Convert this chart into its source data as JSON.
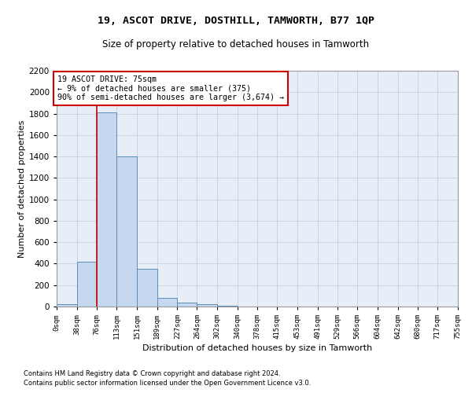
{
  "title": "19, ASCOT DRIVE, DOSTHILL, TAMWORTH, B77 1QP",
  "subtitle": "Size of property relative to detached houses in Tamworth",
  "xlabel": "Distribution of detached houses by size in Tamworth",
  "ylabel": "Number of detached properties",
  "bin_edges": [
    0,
    38,
    76,
    113,
    151,
    189,
    227,
    264,
    302,
    340,
    378,
    415,
    453,
    491,
    529,
    566,
    604,
    642,
    680,
    717,
    755
  ],
  "bin_labels": [
    "0sqm",
    "38sqm",
    "76sqm",
    "113sqm",
    "151sqm",
    "189sqm",
    "227sqm",
    "264sqm",
    "302sqm",
    "340sqm",
    "378sqm",
    "415sqm",
    "453sqm",
    "491sqm",
    "529sqm",
    "566sqm",
    "604sqm",
    "642sqm",
    "680sqm",
    "717sqm",
    "755sqm"
  ],
  "bar_heights": [
    20,
    420,
    1810,
    1400,
    350,
    80,
    35,
    25,
    5,
    2,
    1,
    0,
    0,
    0,
    0,
    0,
    0,
    0,
    0,
    0
  ],
  "bar_color": "#c5d8f0",
  "bar_edge_color": "#5b8db8",
  "grid_color": "#c8d0dc",
  "bg_color": "#e8eef8",
  "property_line_x": 75,
  "property_line_color": "#cc0000",
  "annotation_text": "19 ASCOT DRIVE: 75sqm\n← 9% of detached houses are smaller (375)\n90% of semi-detached houses are larger (3,674) →",
  "annotation_box_color": "#cc0000",
  "ylim": [
    0,
    2200
  ],
  "yticks": [
    0,
    200,
    400,
    600,
    800,
    1000,
    1200,
    1400,
    1600,
    1800,
    2000,
    2200
  ],
  "footer_line1": "Contains HM Land Registry data © Crown copyright and database right 2024.",
  "footer_line2": "Contains public sector information licensed under the Open Government Licence v3.0."
}
